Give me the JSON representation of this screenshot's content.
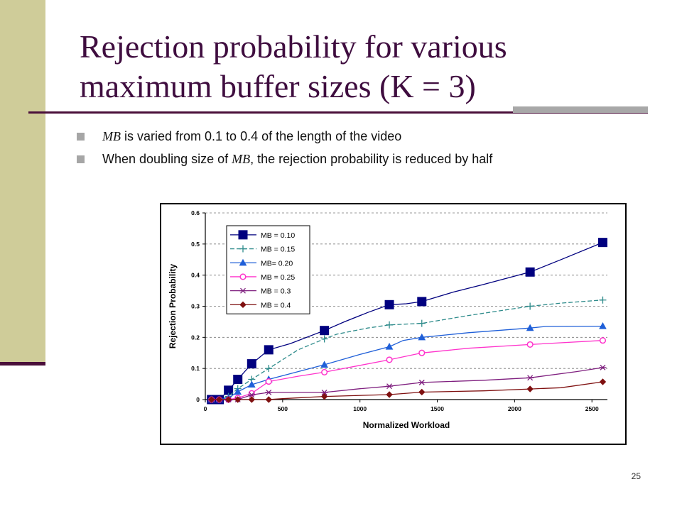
{
  "slide": {
    "title_line1": "Rejection probability for various",
    "title_line2": "maximum buffer sizes (K = 3)",
    "bullets": [
      {
        "var": "MB",
        "pre": "",
        "post": " is varied from 0.1 to 0.4 of the length of the video"
      },
      {
        "var": "MB",
        "pre": "When doubling size of ",
        "post": ", the rejection probability is reduced by half"
      }
    ],
    "page_number": "25"
  },
  "colors": {
    "accent": "#3f0d3f",
    "band": "#cfcc99",
    "rule": "#4a0f3a"
  },
  "chart_data": {
    "type": "line",
    "xlabel": "Normalized Workload",
    "ylabel": "Rejection Probability",
    "xlim": [
      0,
      2600
    ],
    "ylim": [
      0,
      0.6
    ],
    "xticks": [
      "0",
      "500",
      "1000",
      "1500",
      "2000",
      "2500"
    ],
    "yticks": [
      "0",
      "0.1",
      "0.2",
      "0.3",
      "0.4",
      "0.5",
      "0.6"
    ],
    "grid": true,
    "legend_position": "top-left",
    "series": [
      {
        "name": "MB = 0.10",
        "color": "#00007f",
        "marker": "square",
        "dash": "solid",
        "x": [
          40,
          90,
          150,
          210,
          300,
          410,
          770,
          1190,
          1400,
          2100,
          2570
        ],
        "y": [
          0,
          0,
          0.03,
          0.065,
          0.115,
          0.16,
          0.222,
          0.305,
          0.315,
          0.41,
          0.505
        ],
        "line": [
          [
            40,
            0
          ],
          [
            90,
            0
          ],
          [
            150,
            0.03
          ],
          [
            210,
            0.065
          ],
          [
            300,
            0.115
          ],
          [
            410,
            0.16
          ],
          [
            550,
            0.18
          ],
          [
            770,
            0.222
          ],
          [
            900,
            0.25
          ],
          [
            1050,
            0.28
          ],
          [
            1190,
            0.305
          ],
          [
            1300,
            0.308
          ],
          [
            1400,
            0.315
          ],
          [
            1600,
            0.345
          ],
          [
            1800,
            0.37
          ],
          [
            2100,
            0.41
          ],
          [
            2300,
            0.45
          ],
          [
            2570,
            0.505
          ]
        ]
      },
      {
        "name": "MB = 0.15",
        "color": "#2e8b8b",
        "marker": "plus",
        "dash": "dash",
        "x": [
          40,
          90,
          150,
          210,
          300,
          410,
          770,
          1190,
          1400,
          2100,
          2570
        ],
        "y": [
          0,
          0,
          0.01,
          0.035,
          0.065,
          0.1,
          0.195,
          0.24,
          0.245,
          0.3,
          0.32
        ],
        "line": [
          [
            40,
            0
          ],
          [
            90,
            0
          ],
          [
            150,
            0.01
          ],
          [
            210,
            0.035
          ],
          [
            300,
            0.065
          ],
          [
            410,
            0.1
          ],
          [
            600,
            0.16
          ],
          [
            770,
            0.195
          ],
          [
            850,
            0.21
          ],
          [
            1050,
            0.23
          ],
          [
            1190,
            0.24
          ],
          [
            1400,
            0.245
          ],
          [
            1700,
            0.27
          ],
          [
            2100,
            0.3
          ],
          [
            2300,
            0.31
          ],
          [
            2570,
            0.32
          ]
        ]
      },
      {
        "name": "MB= 0.20",
        "color": "#1f5fd8",
        "marker": "triangle",
        "dash": "solid",
        "x": [
          40,
          90,
          150,
          210,
          300,
          410,
          770,
          1190,
          1400,
          2100,
          2570
        ],
        "y": [
          0,
          0,
          0.005,
          0.025,
          0.048,
          0.065,
          0.112,
          0.17,
          0.2,
          0.23,
          0.236
        ],
        "line": [
          [
            40,
            0
          ],
          [
            90,
            0
          ],
          [
            150,
            0.005
          ],
          [
            210,
            0.025
          ],
          [
            300,
            0.048
          ],
          [
            410,
            0.065
          ],
          [
            600,
            0.09
          ],
          [
            770,
            0.112
          ],
          [
            1000,
            0.145
          ],
          [
            1190,
            0.17
          ],
          [
            1280,
            0.19
          ],
          [
            1400,
            0.2
          ],
          [
            1700,
            0.215
          ],
          [
            2100,
            0.23
          ],
          [
            2200,
            0.235
          ],
          [
            2570,
            0.236
          ]
        ]
      },
      {
        "name": "MB = 0.25",
        "color": "#ff33cc",
        "marker": "circle",
        "dash": "solid",
        "x": [
          40,
          90,
          150,
          210,
          300,
          410,
          770,
          1190,
          1400,
          2100,
          2570
        ],
        "y": [
          0,
          0,
          0,
          0.005,
          0.02,
          0.058,
          0.088,
          0.128,
          0.15,
          0.177,
          0.19
        ],
        "line": [
          [
            40,
            0
          ],
          [
            90,
            0
          ],
          [
            150,
            0
          ],
          [
            210,
            0.005
          ],
          [
            300,
            0.02
          ],
          [
            410,
            0.058
          ],
          [
            600,
            0.075
          ],
          [
            770,
            0.088
          ],
          [
            1000,
            0.11
          ],
          [
            1190,
            0.128
          ],
          [
            1400,
            0.15
          ],
          [
            1700,
            0.165
          ],
          [
            2100,
            0.177
          ],
          [
            2570,
            0.19
          ]
        ]
      },
      {
        "name": "MB = 0.3",
        "color": "#7f1f7f",
        "marker": "asterisk",
        "dash": "solid",
        "x": [
          40,
          90,
          150,
          210,
          300,
          410,
          770,
          1190,
          1400,
          2100,
          2570
        ],
        "y": [
          0,
          0,
          0,
          0,
          0.015,
          0.023,
          0.023,
          0.043,
          0.055,
          0.07,
          0.103
        ],
        "line": [
          [
            40,
            0
          ],
          [
            90,
            0
          ],
          [
            150,
            0
          ],
          [
            210,
            0
          ],
          [
            300,
            0.015
          ],
          [
            410,
            0.023
          ],
          [
            770,
            0.023
          ],
          [
            1000,
            0.035
          ],
          [
            1190,
            0.043
          ],
          [
            1400,
            0.055
          ],
          [
            1800,
            0.062
          ],
          [
            2100,
            0.07
          ],
          [
            2400,
            0.09
          ],
          [
            2570,
            0.103
          ]
        ]
      },
      {
        "name": "MB = 0.4",
        "color": "#7f1010",
        "marker": "diamond",
        "dash": "solid",
        "x": [
          40,
          90,
          150,
          210,
          300,
          410,
          770,
          1190,
          1400,
          2100,
          2570
        ],
        "y": [
          0,
          0,
          0,
          0,
          0,
          0,
          0.01,
          0.016,
          0.024,
          0.034,
          0.057
        ],
        "line": [
          [
            40,
            0
          ],
          [
            90,
            0
          ],
          [
            150,
            0
          ],
          [
            210,
            0
          ],
          [
            300,
            0
          ],
          [
            410,
            0
          ],
          [
            500,
            0.003
          ],
          [
            770,
            0.01
          ],
          [
            1190,
            0.016
          ],
          [
            1400,
            0.024
          ],
          [
            1800,
            0.028
          ],
          [
            2100,
            0.034
          ],
          [
            2300,
            0.038
          ],
          [
            2570,
            0.057
          ]
        ]
      }
    ]
  }
}
